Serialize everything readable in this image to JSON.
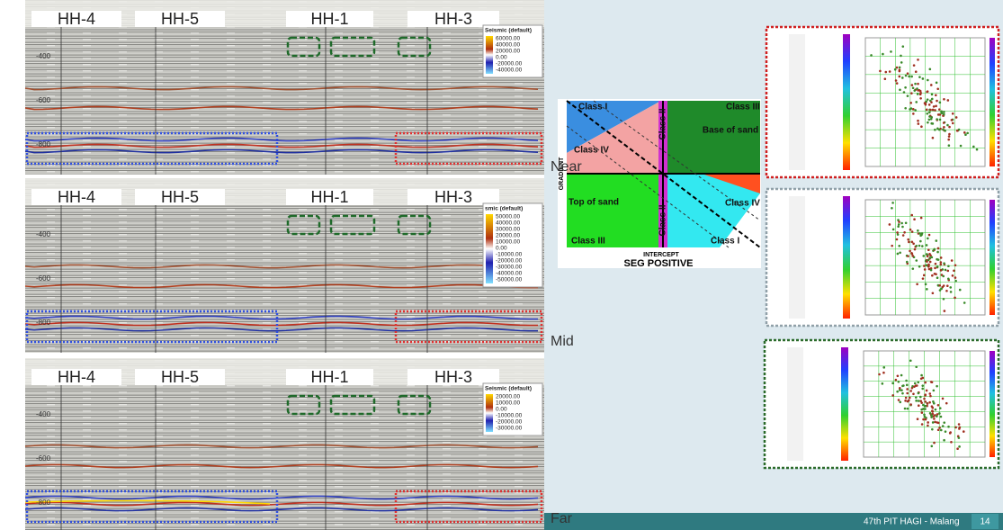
{
  "panels": [
    {
      "wells": [
        "HH-4",
        "HH-5",
        "HH-1",
        "HH-3"
      ],
      "depth_ticks": [
        "-400",
        "-600",
        "-800"
      ],
      "legend": {
        "title": "Seismic (default)",
        "labels": [
          "60000.00",
          "40000.00",
          "20000.00",
          "0.00",
          "-20000.00",
          "-40000.00"
        ]
      }
    },
    {
      "wells": [
        "HH-4",
        "HH-5",
        "HH-1",
        "HH-3"
      ],
      "depth_ticks": [
        "-400",
        "-600",
        "-800"
      ],
      "legend": {
        "title": "smic (default)",
        "labels": [
          "50000.00",
          "40000.00",
          "30000.00",
          "20000.00",
          "10000.00",
          "0.00",
          "-10000.00",
          "-20000.00",
          "-30000.00",
          "-40000.00",
          "-50000.00"
        ]
      }
    },
    {
      "wells": [
        "HH-4",
        "HH-5",
        "HH-1",
        "HH-3"
      ],
      "depth_ticks": [
        "-400",
        "-600",
        "-800"
      ],
      "legend": {
        "title": "Seismic (default)",
        "labels": [
          "20000.00",
          "10000.00",
          "0.00",
          "-10000.00",
          "-20000.00",
          "-30000.00"
        ]
      }
    }
  ],
  "offset_labels": [
    "Near",
    "Mid",
    "Far"
  ],
  "avo_chart": {
    "classes": [
      "Class I",
      "Class II",
      "Class III",
      "Class IV",
      "Class IV",
      "Class II",
      "Class III",
      "Class I"
    ],
    "zones": [
      "Base of sand",
      "Top of sand"
    ],
    "x_label": "INTERCEPT",
    "y_label": "GRADIENT",
    "caption": "SEG POSITIVE"
  },
  "footer": {
    "event": "47th PIT HAGI - Malang",
    "page": "14"
  }
}
